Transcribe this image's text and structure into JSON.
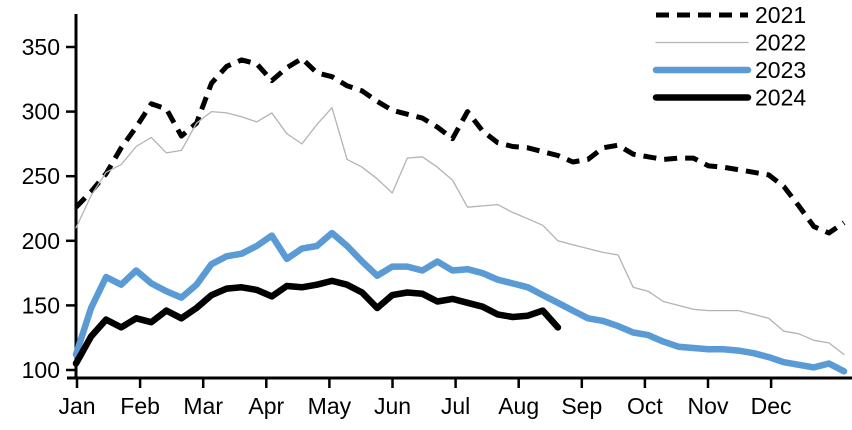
{
  "chart_data": {
    "type": "line",
    "title": "",
    "x_unit": "week-of-year",
    "grid": false,
    "legend_position": "top-right",
    "x_axis": {
      "label": "",
      "tick_labels": [
        "Jan",
        "Feb",
        "Mar",
        "Apr",
        "May",
        "Jun",
        "Jul",
        "Aug",
        "Sep",
        "Oct",
        "Nov",
        "Dec"
      ]
    },
    "y_axis": {
      "label": "",
      "ticks": [
        100,
        150,
        200,
        250,
        300,
        350
      ],
      "ylim": [
        100,
        350
      ]
    },
    "axis_color": "#000000",
    "series": [
      {
        "name": "2021",
        "style": "dashed",
        "color": "#000000",
        "width": 5,
        "values": [
          226,
          238,
          252,
          272,
          288,
          306,
          302,
          281,
          291,
          322,
          335,
          340,
          337,
          324,
          334,
          341,
          330,
          327,
          320,
          316,
          308,
          301,
          298,
          295,
          288,
          279,
          300,
          285,
          276,
          273,
          272,
          269,
          266,
          261,
          263,
          272,
          274,
          267,
          265,
          263,
          264,
          264,
          258,
          257,
          255,
          253,
          251,
          242,
          227,
          211,
          206,
          214
        ]
      },
      {
        "name": "2022",
        "style": "solid",
        "color": "#b3b3b3",
        "width": 1.3,
        "values": [
          210,
          235,
          253,
          259,
          273,
          280,
          268,
          270,
          291,
          300,
          299,
          296,
          292,
          299,
          283,
          275,
          290,
          303,
          263,
          257,
          248,
          237,
          264,
          265,
          257,
          247,
          226,
          227,
          228,
          222,
          217,
          212,
          200,
          197,
          194,
          191,
          189,
          164,
          161,
          153,
          150,
          147,
          146,
          146,
          146,
          143,
          140,
          130,
          128,
          123,
          121,
          112
        ]
      },
      {
        "name": "2023",
        "style": "solid",
        "color": "#5b9bd5",
        "width": 6.5,
        "values": [
          112,
          148,
          172,
          166,
          177,
          167,
          161,
          156,
          166,
          182,
          188,
          190,
          196,
          204,
          186,
          194,
          196,
          206,
          196,
          184,
          173,
          180,
          180,
          177,
          184,
          177,
          178,
          175,
          170,
          167,
          164,
          158,
          152,
          146,
          140,
          138,
          134,
          129,
          127,
          122,
          118,
          117,
          116,
          116,
          115,
          113,
          110,
          106,
          104,
          102,
          105,
          99
        ]
      },
      {
        "name": "2024",
        "style": "solid",
        "color": "#000000",
        "width": 6.5,
        "values": [
          105,
          126,
          139,
          133,
          140,
          137,
          146,
          140,
          148,
          158,
          163,
          164,
          162,
          157,
          165,
          164,
          166,
          169,
          166,
          160,
          148,
          158,
          160,
          159,
          153,
          155,
          152,
          149,
          143,
          141,
          142,
          146,
          133
        ]
      }
    ]
  }
}
